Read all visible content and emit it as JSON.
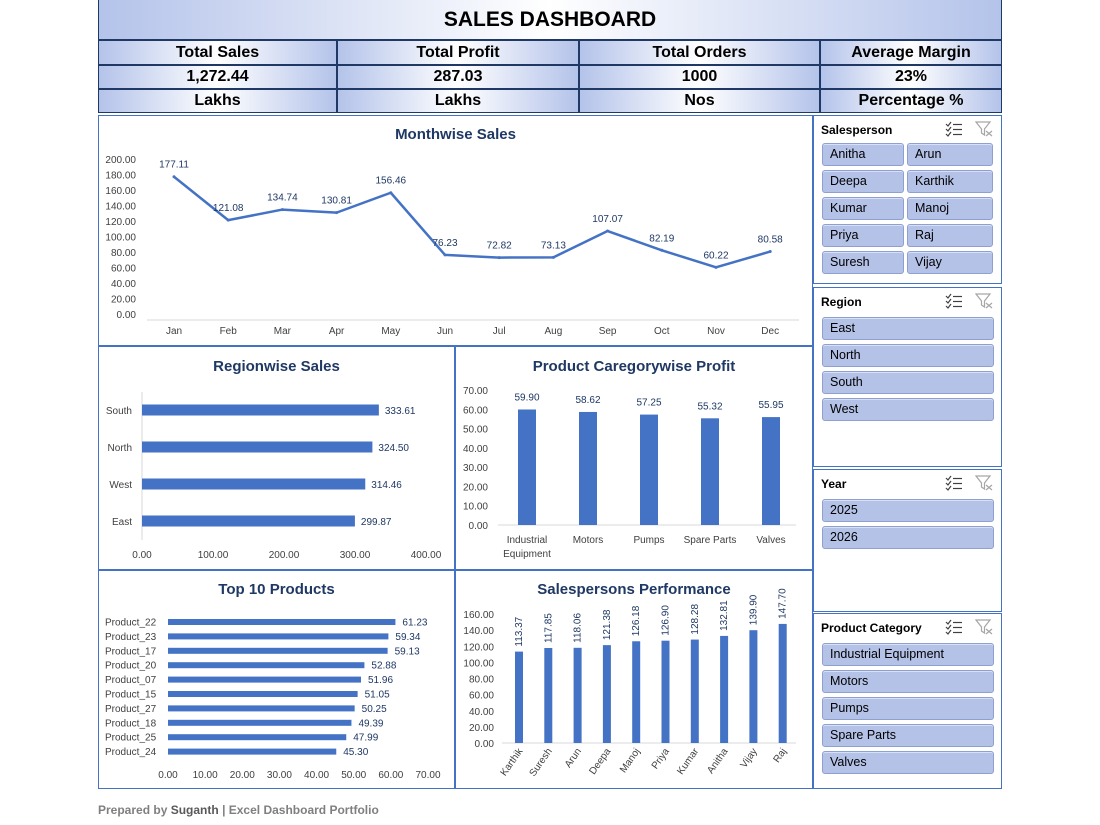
{
  "header": {
    "title": "SALES DASHBOARD"
  },
  "kpis": [
    {
      "label": "Total Sales",
      "value": "1,272.44",
      "unit": "Lakhs"
    },
    {
      "label": "Total Profit",
      "value": "287.03",
      "unit": "Lakhs"
    },
    {
      "label": "Total Orders",
      "value": "1000",
      "unit": "Nos"
    },
    {
      "label": "Average Margin",
      "value": "23%",
      "unit": "Percentage %"
    }
  ],
  "slicers": {
    "salesperson": {
      "title": "Salesperson",
      "items": [
        "Anitha",
        "Arun",
        "Deepa",
        "Karthik",
        "Kumar",
        "Manoj",
        "Priya",
        "Raj",
        "Suresh",
        "Vijay"
      ]
    },
    "region": {
      "title": "Region",
      "items": [
        "East",
        "North",
        "South",
        "West"
      ]
    },
    "year": {
      "title": "Year",
      "items": [
        "2025",
        "2026"
      ]
    },
    "category": {
      "title": "Product Category",
      "items": [
        "Industrial Equipment",
        "Motors",
        "Pumps",
        "Spare Parts",
        "Valves"
      ]
    }
  },
  "footer": {
    "prefix": "Prepared by",
    "author": "Suganth",
    "suffix": "| Excel Dashboard Portfolio"
  },
  "colors": {
    "accent": "#4472c4",
    "title": "#1f3864",
    "slicer_button": "#b4c2e7"
  },
  "icons": [
    "multi-select-icon",
    "clear-filter-icon"
  ],
  "chart_data": [
    {
      "type": "line",
      "title": "Monthwise Sales",
      "categories": [
        "Jan",
        "Feb",
        "Mar",
        "Apr",
        "May",
        "Jun",
        "Jul",
        "Aug",
        "Sep",
        "Oct",
        "Nov",
        "Dec"
      ],
      "values": [
        177.11,
        121.08,
        134.74,
        130.81,
        156.46,
        76.23,
        72.82,
        73.13,
        107.07,
        82.19,
        60.22,
        80.58
      ],
      "labels": [
        "177.11",
        "121.08",
        "134.74",
        "130.81",
        "156.46",
        "76.23",
        "72.82",
        "73.13",
        "107.07",
        "82.19",
        "60.22",
        "80.58"
      ],
      "yticks": [
        "0.00",
        "20.00",
        "40.00",
        "60.00",
        "80.00",
        "100.00",
        "120.00",
        "140.00",
        "160.00",
        "180.00",
        "200.00"
      ],
      "ylim": [
        0,
        200
      ]
    },
    {
      "type": "bar",
      "orientation": "horizontal",
      "title": "Regionwise Sales",
      "categories": [
        "South",
        "North",
        "West",
        "East"
      ],
      "values": [
        333.61,
        324.5,
        314.46,
        299.87
      ],
      "labels": [
        "333.61",
        "324.50",
        "314.46",
        "299.87"
      ],
      "xticks": [
        "0.00",
        "100.00",
        "200.00",
        "300.00",
        "400.00"
      ],
      "xlim": [
        0,
        400
      ]
    },
    {
      "type": "bar",
      "title": "Product Caregorywise Profit",
      "categories": [
        "Industrial Equipment",
        "Motors",
        "Pumps",
        "Spare Parts",
        "Valves"
      ],
      "values": [
        59.9,
        58.62,
        57.25,
        55.32,
        55.95
      ],
      "labels": [
        "59.90",
        "58.62",
        "57.25",
        "55.32",
        "55.95"
      ],
      "yticks": [
        "0.00",
        "10.00",
        "20.00",
        "30.00",
        "40.00",
        "50.00",
        "60.00",
        "70.00"
      ],
      "ylim": [
        0,
        70
      ]
    },
    {
      "type": "bar",
      "orientation": "horizontal",
      "title": "Top 10 Products",
      "categories": [
        "Product_22",
        "Product_23",
        "Product_17",
        "Product_20",
        "Product_07",
        "Product_15",
        "Product_27",
        "Product_18",
        "Product_25",
        "Product_24"
      ],
      "values": [
        61.23,
        59.34,
        59.13,
        52.88,
        51.96,
        51.05,
        50.25,
        49.39,
        47.99,
        45.3
      ],
      "labels": [
        "61.23",
        "59.34",
        "59.13",
        "52.88",
        "51.96",
        "51.05",
        "50.25",
        "49.39",
        "47.99",
        "45.30"
      ],
      "xticks": [
        "0.00",
        "10.00",
        "20.00",
        "30.00",
        "40.00",
        "50.00",
        "60.00",
        "70.00"
      ],
      "xlim": [
        0,
        70
      ]
    },
    {
      "type": "bar",
      "title": "Salespersons Performance",
      "categories": [
        "Karthik",
        "Suresh",
        "Arun",
        "Deepa",
        "Manoj",
        "Priya",
        "Kumar",
        "Anitha",
        "Vijay",
        "Raj"
      ],
      "values": [
        113.37,
        117.85,
        118.06,
        121.38,
        126.18,
        126.9,
        128.28,
        132.81,
        139.9,
        147.7
      ],
      "labels": [
        "113.37",
        "117.85",
        "118.06",
        "121.38",
        "126.18",
        "126.90",
        "128.28",
        "132.81",
        "139.90",
        "147.70"
      ],
      "yticks": [
        "0.00",
        "20.00",
        "40.00",
        "60.00",
        "80.00",
        "100.00",
        "120.00",
        "140.00",
        "160.00"
      ],
      "ylim": [
        0,
        160
      ]
    }
  ]
}
